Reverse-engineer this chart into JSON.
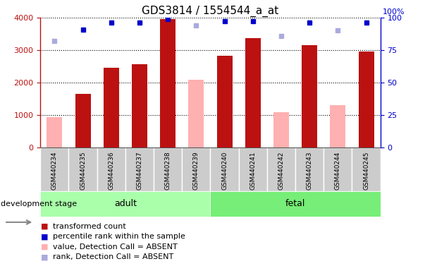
{
  "title": "GDS3814 / 1554544_a_at",
  "samples": [
    "GSM440234",
    "GSM440235",
    "GSM440236",
    "GSM440237",
    "GSM440238",
    "GSM440239",
    "GSM440240",
    "GSM440241",
    "GSM440242",
    "GSM440243",
    "GSM440244",
    "GSM440245"
  ],
  "red_bars": [
    null,
    1650,
    2450,
    2560,
    3950,
    null,
    2820,
    3360,
    null,
    3160,
    null,
    2960
  ],
  "pink_bars": [
    940,
    null,
    null,
    null,
    null,
    2080,
    null,
    null,
    1100,
    null,
    1310,
    null
  ],
  "blue_dots_pct": [
    null,
    91,
    96,
    96,
    99,
    null,
    97,
    97,
    null,
    96,
    null,
    96
  ],
  "lavender_dots_pct": [
    82,
    null,
    null,
    null,
    null,
    94,
    null,
    null,
    86,
    null,
    90,
    null
  ],
  "ylim_left": [
    0,
    4000
  ],
  "ylim_right": [
    0,
    100
  ],
  "yticks_left": [
    0,
    1000,
    2000,
    3000,
    4000
  ],
  "yticks_right": [
    0,
    25,
    50,
    75,
    100
  ],
  "adult_label": "adult",
  "fetal_label": "fetal",
  "stage_label": "development stage",
  "legend": [
    {
      "label": "transformed count",
      "color": "#bb1111"
    },
    {
      "label": "percentile rank within the sample",
      "color": "#0000cc"
    },
    {
      "label": "value, Detection Call = ABSENT",
      "color": "#ffb0b0"
    },
    {
      "label": "rank, Detection Call = ABSENT",
      "color": "#aaaadd"
    }
  ],
  "red_color": "#bb1111",
  "pink_color": "#ffb0b0",
  "blue_color": "#0000cc",
  "lavender_color": "#aaaadd",
  "adult_bg": "#aaffaa",
  "fetal_bg": "#77ee77",
  "stage_box_color": "#cccccc",
  "title_fontsize": 11,
  "tick_fontsize": 8,
  "bar_width": 0.55
}
